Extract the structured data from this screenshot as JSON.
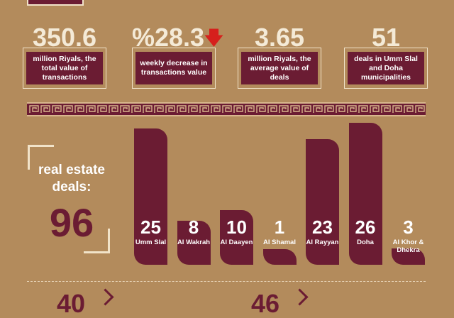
{
  "colors": {
    "background": "#b38b5c",
    "maroon": "#6b1c33",
    "cream": "#f1e3c9",
    "arrow_red": "#d6201c"
  },
  "stats": [
    {
      "value": "350.6",
      "desc": "million Riyals, the total value of transactions"
    },
    {
      "value": "%28.3",
      "desc": "weekly decrease in transactions value",
      "icon": "arrow-down-icon"
    },
    {
      "value": "3.65",
      "desc": "million Riyals, the average value of deals"
    },
    {
      "value": "51",
      "desc": "deals in Umm Slal and Doha municipalities"
    }
  ],
  "deals": {
    "label": "real estate deals:",
    "total": "96"
  },
  "chart_data": {
    "type": "bar",
    "categories": [
      "Umm Slal",
      "Al Wakrah",
      "Al Daayen",
      "Al Shamal",
      "Al Rayyan",
      "Doha",
      "Al Khor & Dhekra"
    ],
    "values": [
      25,
      8,
      10,
      1,
      23,
      26,
      3
    ],
    "ylim": [
      0,
      26
    ],
    "grid": false,
    "legend": "none"
  },
  "bottom_numbers": [
    "40",
    "46"
  ]
}
